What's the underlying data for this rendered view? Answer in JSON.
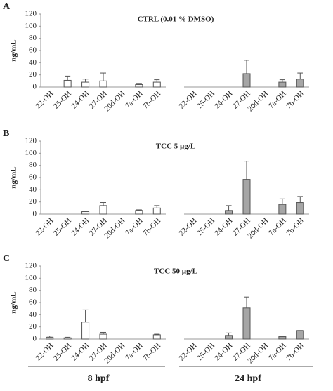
{
  "chart_data": [
    {
      "type": "bar",
      "panel_label": "A",
      "title": "CTRL (0.01 % DMSO)",
      "ylabel": "ng/mL",
      "categories": [
        "22-OH",
        "25-OH",
        "24-OH",
        "27-OH",
        "20d-OH",
        "7a-OH",
        "7b-OH"
      ],
      "ylim": [
        0,
        120
      ],
      "yticks": [
        0,
        20,
        40,
        60,
        80,
        100,
        120
      ],
      "series": [
        {
          "color": "#ffffff",
          "values": [
            null,
            11,
            8,
            10,
            null,
            4,
            8
          ],
          "errors": [
            null,
            7,
            5,
            13,
            null,
            2,
            4
          ]
        },
        {
          "color": "#a6a6a6",
          "values": [
            null,
            null,
            null,
            22,
            null,
            8,
            13
          ],
          "errors": [
            null,
            null,
            null,
            22,
            null,
            4,
            10
          ]
        }
      ]
    },
    {
      "type": "bar",
      "panel_label": "B",
      "title": "TCC 5 µg/L",
      "ylabel": "ng/mL",
      "categories": [
        "22-OH",
        "25-OH",
        "24-OH",
        "27-OH",
        "20d-OH",
        "7a-OH",
        "7b-OH"
      ],
      "ylim": [
        0,
        120
      ],
      "yticks": [
        0,
        20,
        40,
        60,
        80,
        100,
        120
      ],
      "series": [
        {
          "color": "#ffffff",
          "values": [
            null,
            null,
            4,
            14,
            null,
            6,
            10
          ],
          "errors": [
            null,
            null,
            1,
            5,
            null,
            1,
            4
          ]
        },
        {
          "color": "#a6a6a6",
          "values": [
            null,
            null,
            6,
            57,
            null,
            16,
            19
          ],
          "errors": [
            null,
            null,
            8,
            30,
            null,
            9,
            10
          ]
        }
      ]
    },
    {
      "type": "bar",
      "panel_label": "C",
      "title": "TCC 50 µg/L",
      "ylabel": "ng/mL",
      "categories": [
        "22-OH",
        "25-OH",
        "24-OH",
        "27-OH",
        "20d-OH",
        "7a-OH",
        "7b-OH"
      ],
      "ylim": [
        0,
        120
      ],
      "yticks": [
        0,
        20,
        40,
        60,
        80,
        100,
        120
      ],
      "series": [
        {
          "color": "#ffffff",
          "values": [
            3,
            2,
            28,
            8,
            null,
            null,
            7
          ],
          "errors": [
            2,
            1,
            20,
            3,
            null,
            null,
            1
          ]
        },
        {
          "color": "#a6a6a6",
          "values": [
            null,
            null,
            6,
            51,
            null,
            4,
            14
          ],
          "errors": [
            null,
            null,
            4,
            18,
            null,
            1,
            0
          ]
        }
      ]
    }
  ],
  "group_labels": [
    "8 hpf",
    "24 hpf"
  ]
}
